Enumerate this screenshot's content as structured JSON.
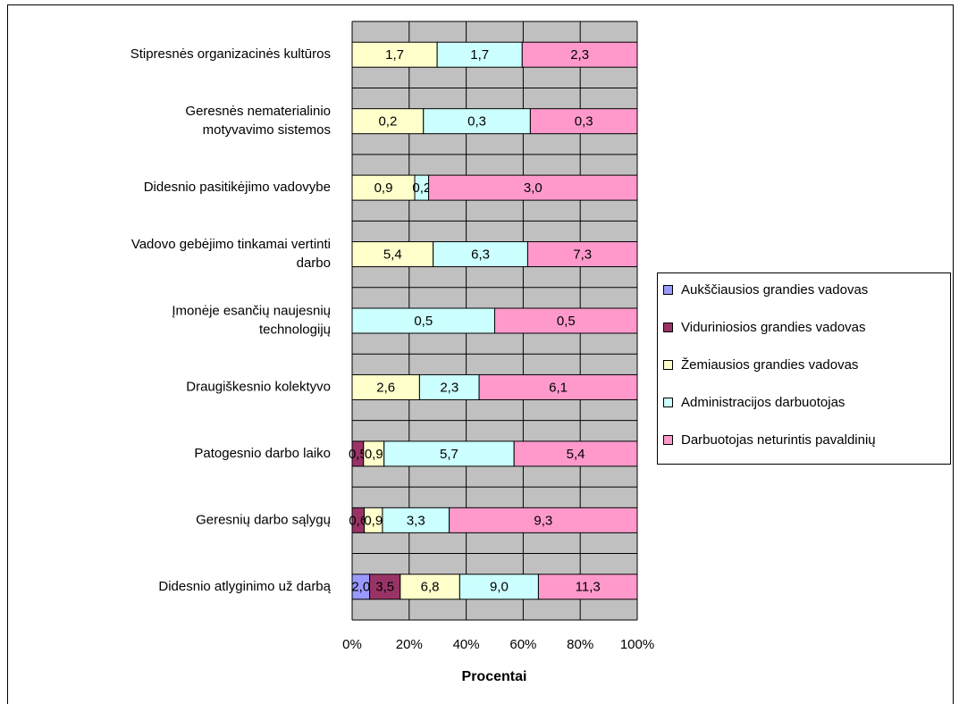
{
  "chart_data": {
    "type": "stacked_bar_100",
    "xlabel": "Procentai",
    "categories": [
      "Stipresnės organizacinės kultūros",
      "Geresnės nematerialinio\nmotyvavimo sistemos",
      "Didesnio pasitikėjimo vadovybe",
      "Vadovo gebėjimo tinkamai vertinti\ndarbo",
      "Įmonėje esančių naujesnių\ntechnologijų",
      "Draugiškesnio kolektyvo",
      "Patogesnio darbo laiko",
      "Geresnių darbo sąlygų",
      "Didesnio atlyginimo už darbą"
    ],
    "series": [
      {
        "name": "Aukščiausios grandies vadovas",
        "color": "#9999ff",
        "values": [
          null,
          null,
          null,
          null,
          null,
          null,
          null,
          null,
          2.0
        ],
        "value_labels": [
          null,
          null,
          null,
          null,
          null,
          null,
          null,
          null,
          "2,0"
        ]
      },
      {
        "name": "Viduriniosios grandies vadovas",
        "color": "#993366",
        "values": [
          null,
          null,
          null,
          null,
          null,
          null,
          0.5,
          0.6,
          3.5
        ],
        "value_labels": [
          null,
          null,
          null,
          null,
          null,
          null,
          "0,5",
          "0,6",
          "3,5"
        ]
      },
      {
        "name": "Žemiausios grandies vadovas",
        "color": "#ffffcc",
        "values": [
          1.7,
          0.2,
          0.9,
          5.4,
          null,
          2.6,
          0.9,
          0.9,
          6.8
        ],
        "value_labels": [
          "1,7",
          "0,2",
          "0,9",
          "5,4",
          null,
          "2,6",
          "0,9",
          "0,9",
          "6,8"
        ]
      },
      {
        "name": "Administracijos darbuotojas",
        "color": "#ccffff",
        "values": [
          1.7,
          0.3,
          0.2,
          6.3,
          0.5,
          2.3,
          5.7,
          3.3,
          9.0
        ],
        "value_labels": [
          "1,7",
          "0,3",
          "0,2",
          "6,3",
          "0,5",
          "2,3",
          "5,7",
          "3,3",
          "9,0"
        ]
      },
      {
        "name": "Darbuotojas neturintis pavaldinių",
        "color": "#ff99cc",
        "values": [
          2.3,
          0.3,
          3.0,
          7.3,
          0.5,
          6.1,
          5.4,
          9.3,
          11.3
        ],
        "value_labels": [
          "2,3",
          "0,3",
          "3,0",
          "7,3",
          "0,5",
          "6,1",
          "5,4",
          "9,3",
          "11,3"
        ]
      }
    ],
    "xlim": [
      0,
      100
    ],
    "xticks": [
      {
        "value": 0,
        "label": "0%"
      },
      {
        "value": 20,
        "label": "20%"
      },
      {
        "value": 40,
        "label": "40%"
      },
      {
        "value": 60,
        "label": "60%"
      },
      {
        "value": 80,
        "label": "80%"
      },
      {
        "value": 100,
        "label": "100%"
      }
    ],
    "grid": true,
    "plot_background": "#c0c0c0",
    "legend": "right"
  }
}
